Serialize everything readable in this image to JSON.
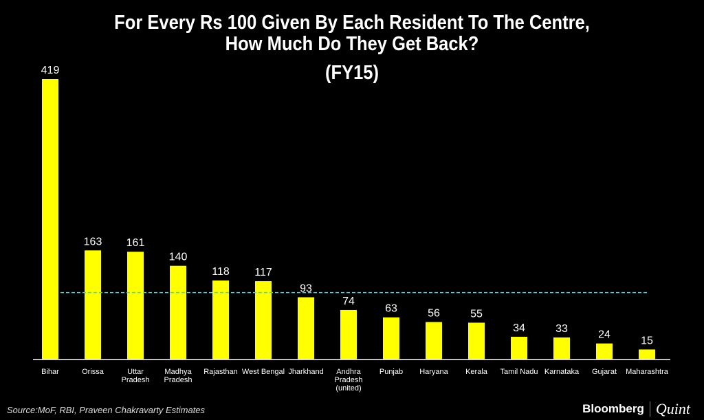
{
  "chart_data": {
    "type": "bar",
    "title": "For Every Rs 100 Given By Each Resident To The Centre, How Much Do They Get Back?",
    "title_lines": [
      "For Every Rs 100 Given By Each Resident To The Centre,",
      "How Much Do They Get Back?"
    ],
    "subtitle": "(FY15)",
    "categories": [
      "Bihar",
      "Orissa",
      "Uttar Pradesh",
      "Madhya Pradesh",
      "Rajasthan",
      "West Bengal",
      "Jharkhand",
      "Andhra Pradesh (united)",
      "Punjab",
      "Haryana",
      "Kerala",
      "Tamil Nadu",
      "Karnataka",
      "Gujarat",
      "Maharashtra"
    ],
    "category_lines": [
      [
        "Bihar"
      ],
      [
        "Orissa"
      ],
      [
        "Uttar",
        "Pradesh"
      ],
      [
        "Madhya",
        "Pradesh"
      ],
      [
        "Rajasthan"
      ],
      [
        "West Bengal"
      ],
      [
        "Jharkhand"
      ],
      [
        "Andhra",
        "Pradesh",
        "(united)"
      ],
      [
        "Punjab"
      ],
      [
        "Haryana"
      ],
      [
        "Kerala"
      ],
      [
        "Tamil Nadu"
      ],
      [
        "Karnataka"
      ],
      [
        "Gujarat"
      ],
      [
        "Maharashtra"
      ]
    ],
    "values": [
      419,
      163,
      161,
      140,
      118,
      117,
      93,
      74,
      63,
      56,
      55,
      34,
      33,
      24,
      15
    ],
    "reference_line": 100,
    "ylim": [
      0,
      419
    ],
    "grid": false,
    "colors": {
      "bar": "#ffff00",
      "reference_line": "#33dddd",
      "background": "#000000"
    }
  },
  "footer": {
    "source": "Source:MoF, RBI, Praveen Chakravarty Estimates",
    "logo_bloomberg": "Bloomberg",
    "logo_quint": "Quint"
  }
}
